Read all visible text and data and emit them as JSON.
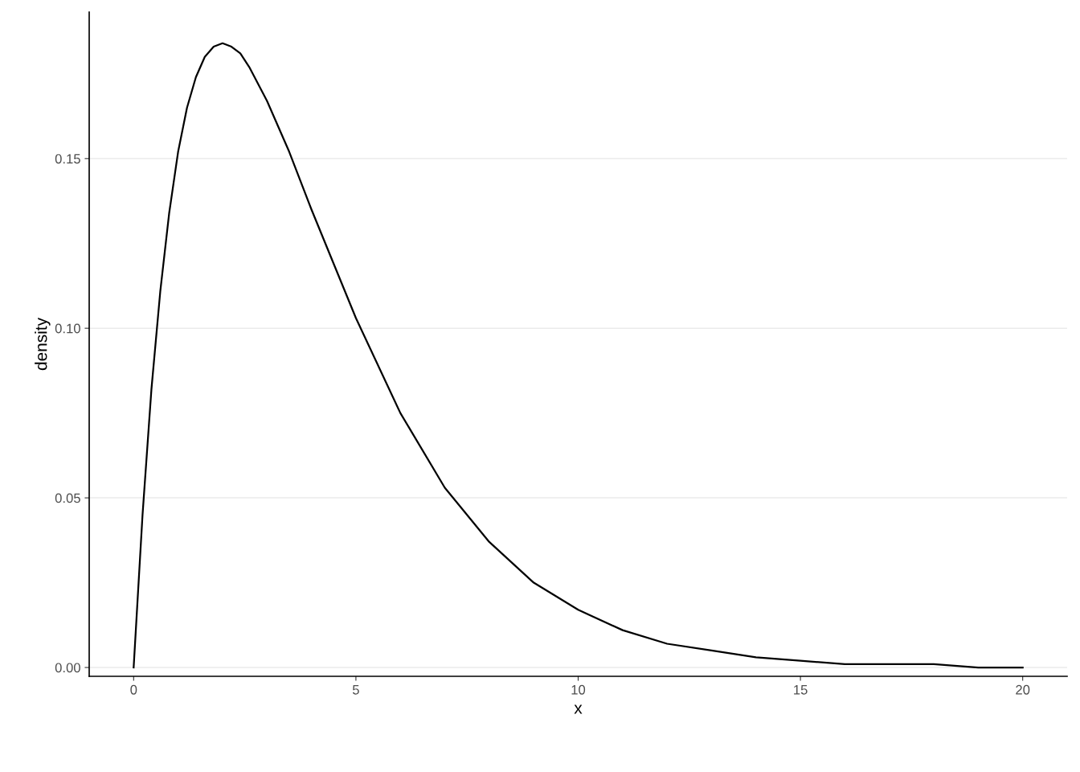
{
  "chart_data": {
    "type": "line",
    "xlabel": "x",
    "ylabel": "density",
    "x": [
      0,
      0.2,
      0.4,
      0.6,
      0.8,
      1.0,
      1.2,
      1.4,
      1.6,
      1.8,
      2.0,
      2.2,
      2.4,
      2.6,
      3,
      3.5,
      4,
      4.5,
      5,
      6,
      7,
      8,
      9,
      10,
      11,
      12,
      13,
      14,
      15,
      16,
      17,
      18,
      19,
      20
    ],
    "series": [
      {
        "color": "#000000",
        "values": [
          0,
          0.045,
          0.082,
          0.111,
          0.134,
          0.152,
          0.165,
          0.174,
          0.18,
          0.183,
          0.184,
          0.183,
          0.181,
          0.177,
          0.167,
          0.152,
          0.135,
          0.119,
          0.103,
          0.075,
          0.053,
          0.037,
          0.025,
          0.017,
          0.011,
          0.007,
          0.005,
          0.003,
          0.002,
          0.001,
          0.001,
          0.001,
          0.0,
          0.0
        ]
      }
    ],
    "xlim": [
      -1,
      21
    ],
    "ylim": [
      -0.0026,
      0.1932
    ],
    "xticks": [
      0,
      5,
      10,
      15,
      20
    ],
    "yticks": [
      {
        "value": 0,
        "label": "0.00"
      },
      {
        "value": 0.05,
        "label": "0.05"
      },
      {
        "value": 0.1,
        "label": "0.10"
      },
      {
        "value": 0.15,
        "label": "0.15"
      }
    ],
    "grid": "y",
    "legend": false,
    "marker": "none",
    "line_style": "solid"
  }
}
